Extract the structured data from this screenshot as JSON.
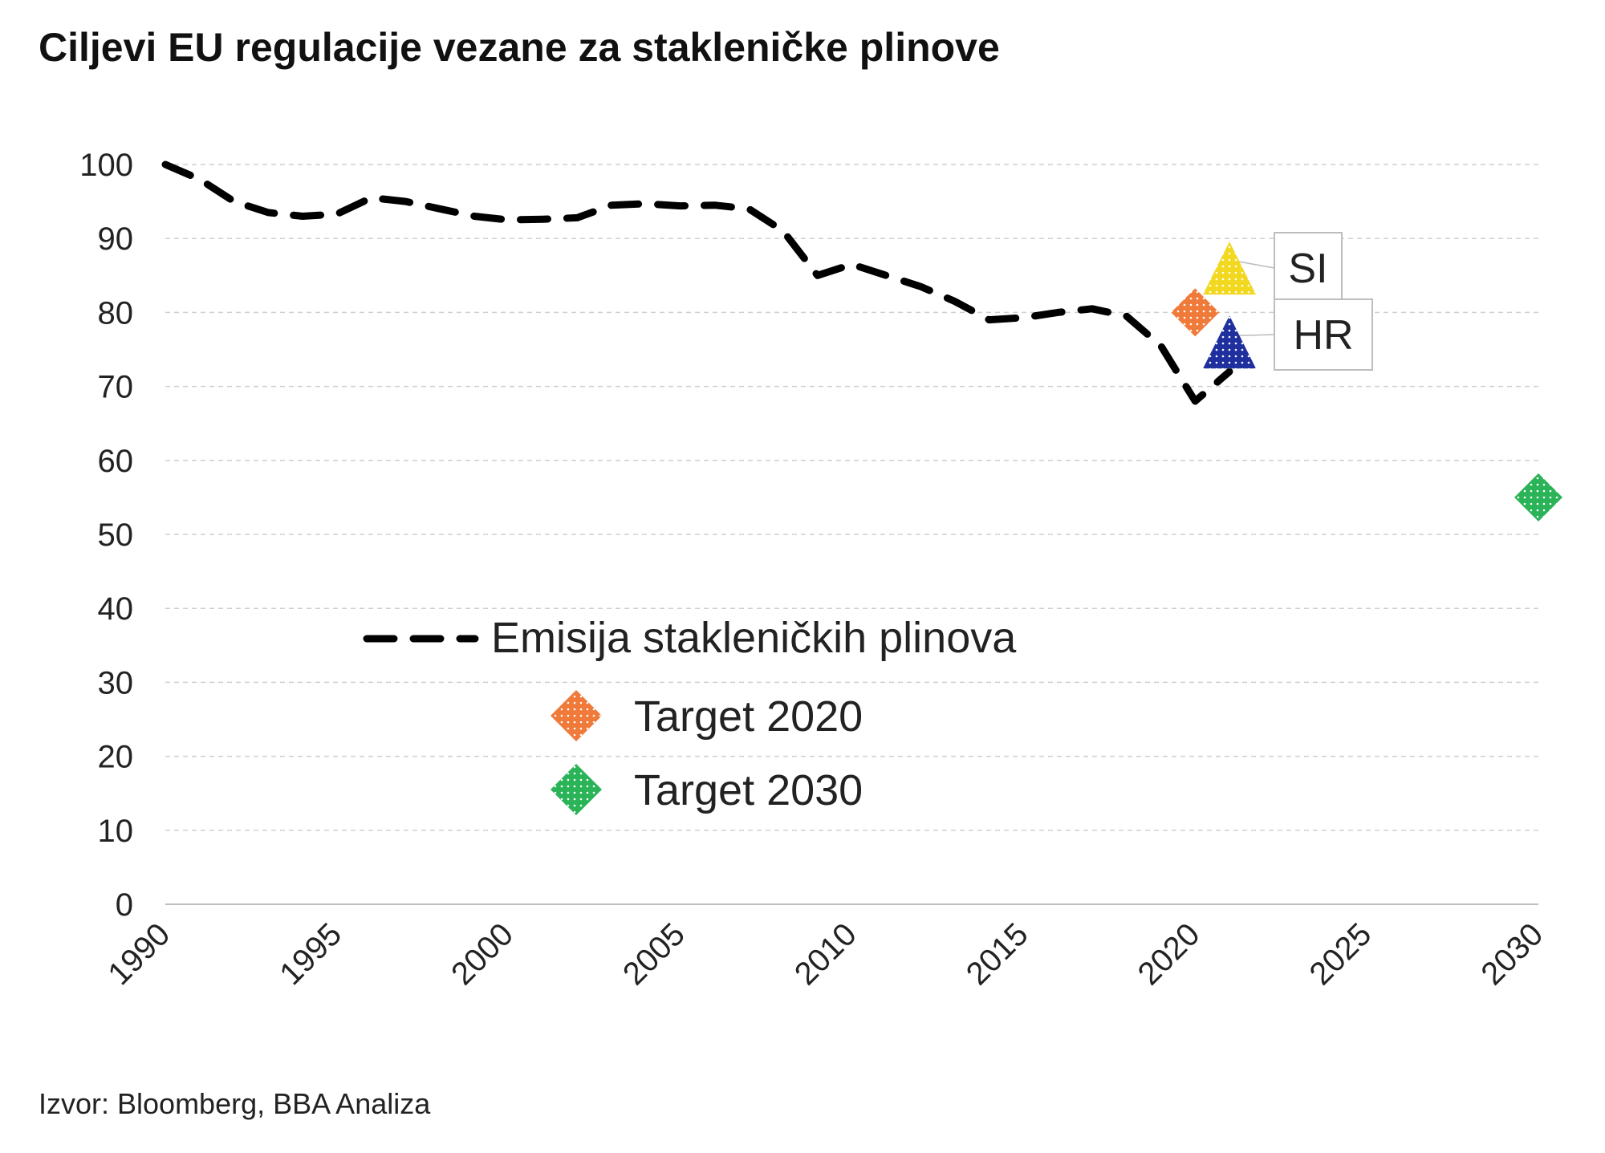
{
  "title": "Ciljevi EU regulacije vezane za stakleničke plinove",
  "source": "Izvor: Bloomberg, BBA Analiza",
  "chart_data": {
    "type": "line",
    "x_range": [
      1990,
      2030
    ],
    "y_range": [
      0,
      100
    ],
    "x_ticks": [
      1990,
      1995,
      2000,
      2005,
      2010,
      2015,
      2020,
      2025,
      2030
    ],
    "y_ticks": [
      0,
      10,
      20,
      30,
      40,
      50,
      60,
      70,
      80,
      90,
      100
    ],
    "grid": "horizontal dashed",
    "legend_position": "center-left",
    "series": [
      {
        "name": "Emisija stakleničkih plinova",
        "kind": "line",
        "style": "dashed",
        "color": "#000000",
        "points": [
          [
            1990,
            100.0
          ],
          [
            1991,
            98.0
          ],
          [
            1992,
            95.0
          ],
          [
            1993,
            93.5
          ],
          [
            1994,
            93.0
          ],
          [
            1995,
            93.3
          ],
          [
            1996,
            95.5
          ],
          [
            1997,
            95.0
          ],
          [
            1998,
            94.0
          ],
          [
            1999,
            93.0
          ],
          [
            2000,
            92.5
          ],
          [
            2001,
            92.6
          ],
          [
            2002,
            92.8
          ],
          [
            2003,
            94.5
          ],
          [
            2004,
            94.7
          ],
          [
            2005,
            94.4
          ],
          [
            2006,
            94.5
          ],
          [
            2007,
            94.0
          ],
          [
            2008,
            91.0
          ],
          [
            2009,
            85.0
          ],
          [
            2010,
            86.5
          ],
          [
            2011,
            85.0
          ],
          [
            2012,
            83.5
          ],
          [
            2013,
            81.5
          ],
          [
            2014,
            79.0
          ],
          [
            2015,
            79.3
          ],
          [
            2016,
            80.0
          ],
          [
            2017,
            80.5
          ],
          [
            2018,
            79.5
          ],
          [
            2019,
            75.5
          ],
          [
            2020,
            68.0
          ],
          [
            2021,
            72.0
          ]
        ]
      },
      {
        "name": "Target 2020",
        "kind": "marker",
        "marker": "diamond",
        "color": "#F07A3A",
        "points": [
          [
            2020,
            80
          ]
        ]
      },
      {
        "name": "Target 2030",
        "kind": "marker",
        "marker": "diamond",
        "color": "#2BB358",
        "points": [
          [
            2030,
            55
          ]
        ]
      }
    ],
    "annotations": [
      {
        "label": "SI",
        "marker": "triangle",
        "color": "#F2D81E",
        "x": 2021,
        "y": 86
      },
      {
        "label": "HR",
        "marker": "triangle",
        "color": "#1F2F9E",
        "x": 2021,
        "y": 76
      }
    ]
  }
}
